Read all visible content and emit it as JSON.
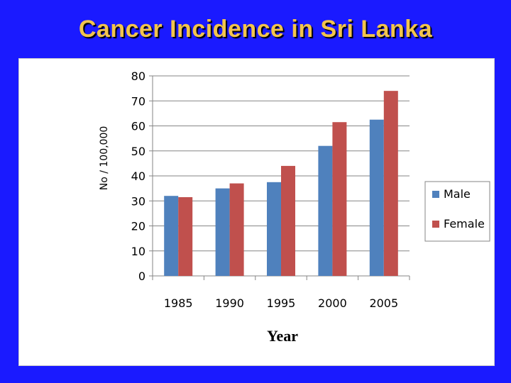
{
  "title": "Cancer Incidence in Sri Lanka",
  "colors": {
    "background": "#1a1aff",
    "title": "#f2c44d",
    "male": "#4f81bd",
    "female": "#c0504d"
  },
  "chart_data": {
    "type": "bar",
    "title": "",
    "xlabel": "Year",
    "ylabel": "No / 100,000",
    "categories": [
      "1985",
      "1990",
      "1995",
      "2000",
      "2005"
    ],
    "series": [
      {
        "name": "Male",
        "values": [
          32,
          35,
          37.5,
          52,
          62.5
        ]
      },
      {
        "name": "Female",
        "values": [
          31.5,
          37,
          44,
          61.5,
          74
        ]
      }
    ],
    "ylim": [
      0,
      80
    ],
    "yticks": [
      0,
      10,
      20,
      30,
      40,
      50,
      60,
      70,
      80
    ],
    "grid": true,
    "legend": "right"
  }
}
